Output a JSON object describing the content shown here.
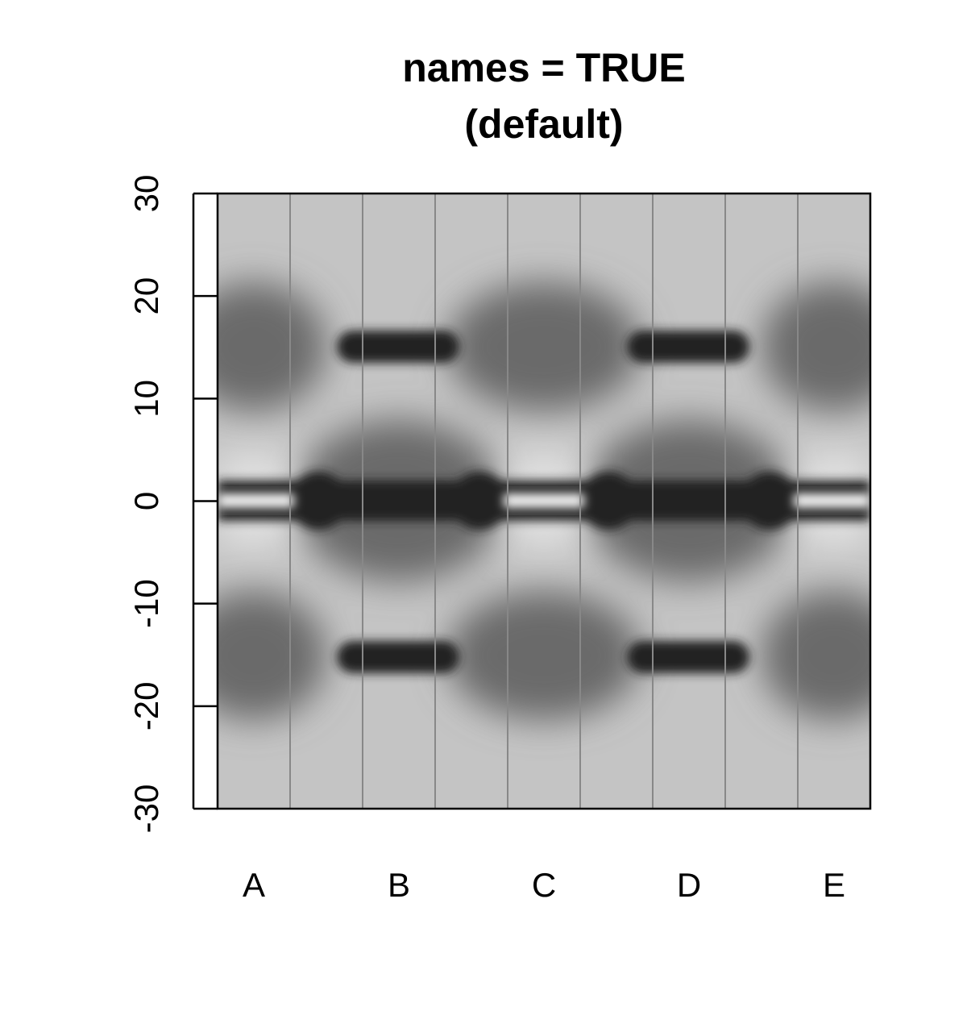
{
  "chart_data": {
    "type": "density-strip",
    "title": [
      "names = TRUE",
      "(default)"
    ],
    "categories": [
      "A",
      "B",
      "C",
      "D",
      "E"
    ],
    "ylim": [
      -30,
      30
    ],
    "yticks": [
      -30,
      -20,
      -10,
      0,
      10,
      20,
      30
    ]
  }
}
